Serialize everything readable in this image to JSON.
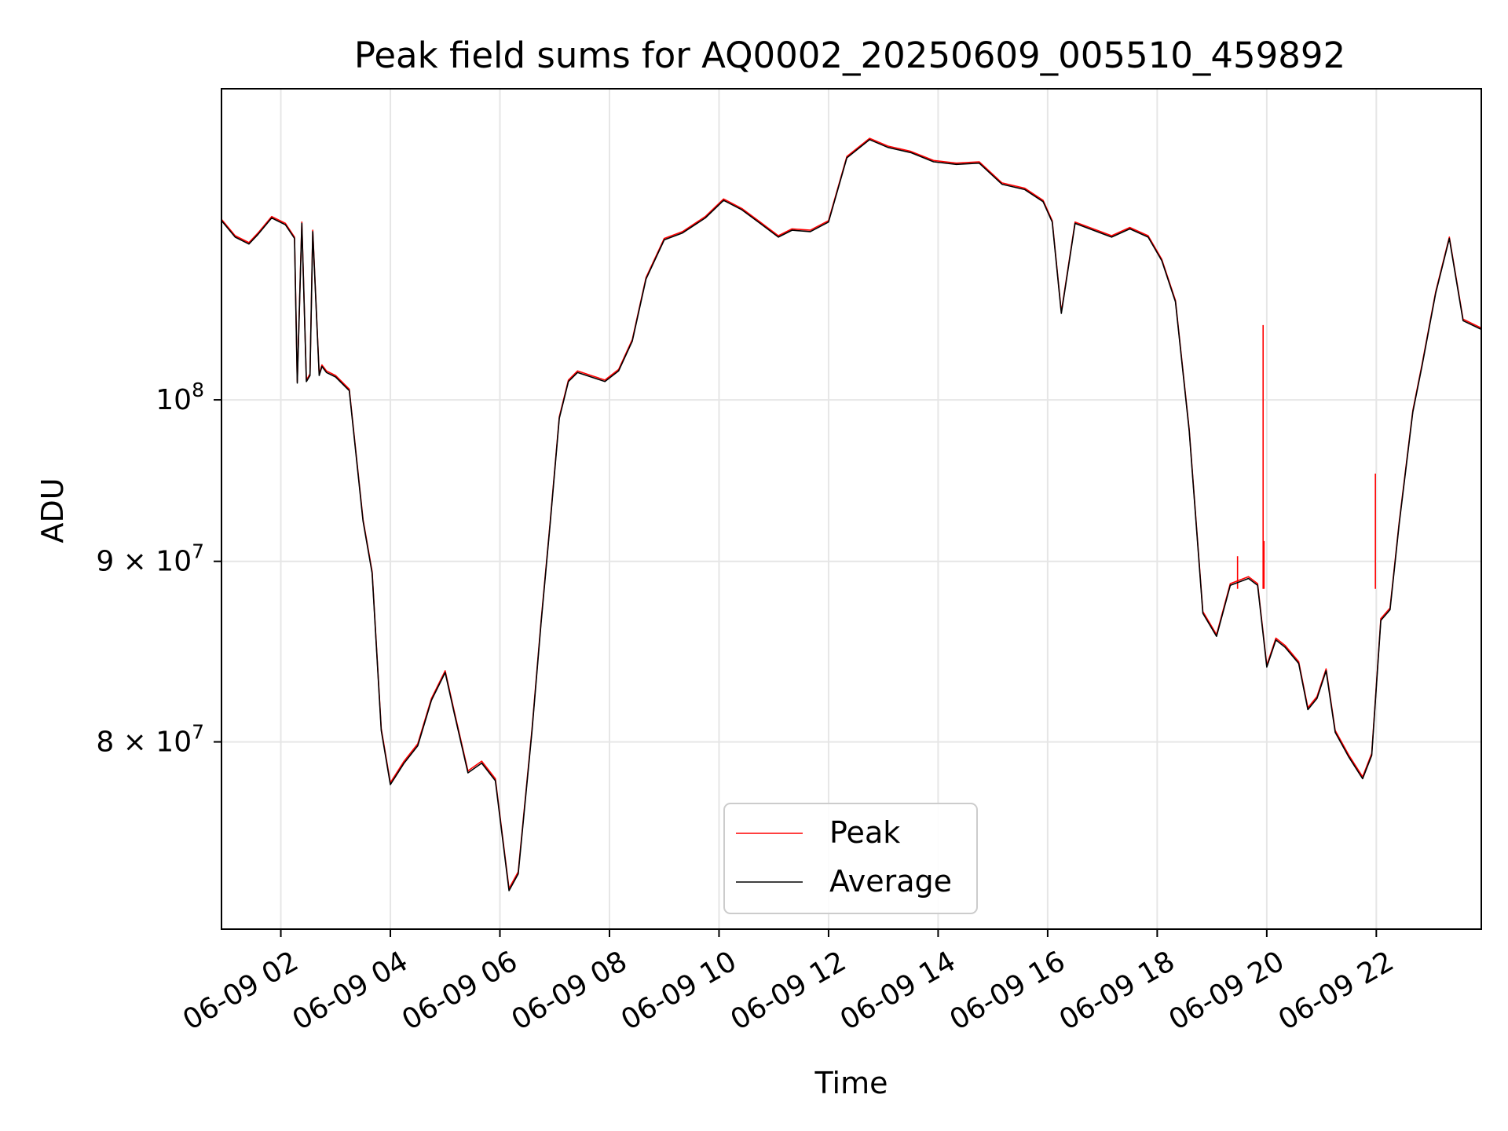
{
  "chart_data": {
    "type": "line",
    "title": "Peak field sums for AQ0002_20250609_005510_459892",
    "xlabel": "Time",
    "ylabel": "ADU",
    "y_scale": "log",
    "xlim": [
      "2025-06-09 00:55",
      "2025-06-09 23:55"
    ],
    "ylim": [
      70800000,
      122500000
    ],
    "x_ticks": [
      {
        "value": "2025-06-09 02:00",
        "label": "06-09 02"
      },
      {
        "value": "2025-06-09 04:00",
        "label": "06-09 04"
      },
      {
        "value": "2025-06-09 06:00",
        "label": "06-09 06"
      },
      {
        "value": "2025-06-09 08:00",
        "label": "06-09 08"
      },
      {
        "value": "2025-06-09 10:00",
        "label": "06-09 10"
      },
      {
        "value": "2025-06-09 12:00",
        "label": "06-09 12"
      },
      {
        "value": "2025-06-09 14:00",
        "label": "06-09 14"
      },
      {
        "value": "2025-06-09 16:00",
        "label": "06-09 16"
      },
      {
        "value": "2025-06-09 18:00",
        "label": "06-09 18"
      },
      {
        "value": "2025-06-09 20:00",
        "label": "06-09 20"
      },
      {
        "value": "2025-06-09 22:00",
        "label": "06-09 22"
      }
    ],
    "y_ticks": [
      {
        "value": 80000000,
        "base": "8 × 10",
        "exp": "7"
      },
      {
        "value": 90000000,
        "base": "9 × 10",
        "exp": "7"
      },
      {
        "value": 100000000,
        "base": "10",
        "exp": "8"
      }
    ],
    "grid": true,
    "legend_position": "lower center",
    "series": [
      {
        "name": "Peak",
        "color": "#ff0000",
        "x": [
          "2025-06-09 00:55",
          "2025-06-09 01:10",
          "2025-06-09 01:25",
          "2025-06-09 01:35",
          "2025-06-09 01:50",
          "2025-06-09 02:05",
          "2025-06-09 02:15",
          "2025-06-09 02:18",
          "2025-06-09 02:23",
          "2025-06-09 02:28",
          "2025-06-09 02:32",
          "2025-06-09 02:35",
          "2025-06-09 02:42",
          "2025-06-09 02:45",
          "2025-06-09 02:50",
          "2025-06-09 03:00",
          "2025-06-09 03:15",
          "2025-06-09 03:30",
          "2025-06-09 03:40",
          "2025-06-09 03:50",
          "2025-06-09 04:00",
          "2025-06-09 04:15",
          "2025-06-09 04:30",
          "2025-06-09 04:45",
          "2025-06-09 05:00",
          "2025-06-09 05:10",
          "2025-06-09 05:25",
          "2025-06-09 05:40",
          "2025-06-09 05:55",
          "2025-06-09 06:10",
          "2025-06-09 06:20",
          "2025-06-09 06:35",
          "2025-06-09 06:45",
          "2025-06-09 06:55",
          "2025-06-09 07:05",
          "2025-06-09 07:15",
          "2025-06-09 07:25",
          "2025-06-09 07:40",
          "2025-06-09 07:55",
          "2025-06-09 08:10",
          "2025-06-09 08:25",
          "2025-06-09 08:40",
          "2025-06-09 09:00",
          "2025-06-09 09:20",
          "2025-06-09 09:45",
          "2025-06-09 10:05",
          "2025-06-09 10:25",
          "2025-06-09 10:45",
          "2025-06-09 11:05",
          "2025-06-09 11:20",
          "2025-06-09 11:40",
          "2025-06-09 12:00",
          "2025-06-09 12:20",
          "2025-06-09 12:45",
          "2025-06-09 13:05",
          "2025-06-09 13:30",
          "2025-06-09 13:55",
          "2025-06-09 14:20",
          "2025-06-09 14:45",
          "2025-06-09 15:10",
          "2025-06-09 15:35",
          "2025-06-09 15:55",
          "2025-06-09 16:05",
          "2025-06-09 16:15",
          "2025-06-09 16:30",
          "2025-06-09 16:50",
          "2025-06-09 17:10",
          "2025-06-09 17:30",
          "2025-06-09 17:50",
          "2025-06-09 18:05",
          "2025-06-09 18:20",
          "2025-06-09 18:35",
          "2025-06-09 18:50",
          "2025-06-09 19:05",
          "2025-06-09 19:20",
          "2025-06-09 19:40",
          "2025-06-09 19:50",
          "2025-06-09 20:00",
          "2025-06-09 20:10",
          "2025-06-09 20:20",
          "2025-06-09 20:35",
          "2025-06-09 20:45",
          "2025-06-09 20:55",
          "2025-06-09 21:05",
          "2025-06-09 21:15",
          "2025-06-09 21:30",
          "2025-06-09 21:45",
          "2025-06-09 21:55",
          "2025-06-09 22:05",
          "2025-06-09 22:15",
          "2025-06-09 22:25",
          "2025-06-09 22:40",
          "2025-06-09 22:50",
          "2025-06-09 23:05",
          "2025-06-09 23:20",
          "2025-06-09 23:35",
          "2025-06-09 23:55"
        ],
        "y": [
          112500000,
          111300000,
          110800000,
          111500000,
          112700000,
          112200000,
          111200000,
          101200000,
          112300000,
          101300000,
          101700000,
          111700000,
          101700000,
          102300000,
          101900000,
          101600000,
          100700000,
          92500000,
          89400000,
          80700000,
          77900000,
          79000000,
          79900000,
          82300000,
          83800000,
          81600000,
          78500000,
          79000000,
          78100000,
          72700000,
          73500000,
          80600000,
          86500000,
          92300000,
          98900000,
          101300000,
          101900000,
          101600000,
          101300000,
          102000000,
          104000000,
          108300000,
          111100000,
          111600000,
          112700000,
          114000000,
          113300000,
          112300000,
          111300000,
          111800000,
          111700000,
          112400000,
          117200000,
          118600000,
          118000000,
          117600000,
          116900000,
          116700000,
          116800000,
          115200000,
          114800000,
          113900000,
          112400000,
          105900000,
          112300000,
          111800000,
          111300000,
          111900000,
          111300000,
          109600000,
          106700000,
          98100000,
          87100000,
          85800000,
          88700000,
          89100000,
          88700000,
          84100000,
          85600000,
          85200000,
          84300000,
          81800000,
          82400000,
          83900000,
          80600000,
          79300000,
          78200000,
          79400000,
          86700000,
          87300000,
          92300000,
          99300000,
          102300000,
          107300000,
          111200000,
          105400000,
          104800000
        ],
        "spikes": [
          {
            "x": "2025-06-09 19:56",
            "y": 105000000
          },
          {
            "x": "2025-06-09 19:57",
            "y": 91200000
          },
          {
            "x": "2025-06-09 21:59",
            "y": 95300000
          },
          {
            "x": "2025-06-09 19:28",
            "y": 90300000
          }
        ]
      },
      {
        "name": "Average",
        "color": "#000000",
        "x": [
          "2025-06-09 00:55",
          "2025-06-09 01:10",
          "2025-06-09 01:25",
          "2025-06-09 01:35",
          "2025-06-09 01:50",
          "2025-06-09 02:05",
          "2025-06-09 02:15",
          "2025-06-09 02:18",
          "2025-06-09 02:23",
          "2025-06-09 02:28",
          "2025-06-09 02:32",
          "2025-06-09 02:35",
          "2025-06-09 02:42",
          "2025-06-09 02:45",
          "2025-06-09 02:50",
          "2025-06-09 03:00",
          "2025-06-09 03:15",
          "2025-06-09 03:30",
          "2025-06-09 03:40",
          "2025-06-09 03:50",
          "2025-06-09 04:00",
          "2025-06-09 04:15",
          "2025-06-09 04:30",
          "2025-06-09 04:45",
          "2025-06-09 05:00",
          "2025-06-09 05:10",
          "2025-06-09 05:25",
          "2025-06-09 05:40",
          "2025-06-09 05:55",
          "2025-06-09 06:10",
          "2025-06-09 06:20",
          "2025-06-09 06:35",
          "2025-06-09 06:45",
          "2025-06-09 06:55",
          "2025-06-09 07:05",
          "2025-06-09 07:15",
          "2025-06-09 07:25",
          "2025-06-09 07:40",
          "2025-06-09 07:55",
          "2025-06-09 08:10",
          "2025-06-09 08:25",
          "2025-06-09 08:40",
          "2025-06-09 09:00",
          "2025-06-09 09:20",
          "2025-06-09 09:45",
          "2025-06-09 10:05",
          "2025-06-09 10:25",
          "2025-06-09 10:45",
          "2025-06-09 11:05",
          "2025-06-09 11:20",
          "2025-06-09 11:40",
          "2025-06-09 12:00",
          "2025-06-09 12:20",
          "2025-06-09 12:45",
          "2025-06-09 13:05",
          "2025-06-09 13:30",
          "2025-06-09 13:55",
          "2025-06-09 14:20",
          "2025-06-09 14:45",
          "2025-06-09 15:10",
          "2025-06-09 15:35",
          "2025-06-09 15:55",
          "2025-06-09 16:05",
          "2025-06-09 16:15",
          "2025-06-09 16:30",
          "2025-06-09 16:50",
          "2025-06-09 17:10",
          "2025-06-09 17:30",
          "2025-06-09 17:50",
          "2025-06-09 18:05",
          "2025-06-09 18:20",
          "2025-06-09 18:35",
          "2025-06-09 18:50",
          "2025-06-09 19:05",
          "2025-06-09 19:20",
          "2025-06-09 19:40",
          "2025-06-09 19:50",
          "2025-06-09 20:00",
          "2025-06-09 20:10",
          "2025-06-09 20:20",
          "2025-06-09 20:35",
          "2025-06-09 20:45",
          "2025-06-09 20:55",
          "2025-06-09 21:05",
          "2025-06-09 21:15",
          "2025-06-09 21:30",
          "2025-06-09 21:45",
          "2025-06-09 21:55",
          "2025-06-09 22:05",
          "2025-06-09 22:15",
          "2025-06-09 22:25",
          "2025-06-09 22:40",
          "2025-06-09 22:50",
          "2025-06-09 23:05",
          "2025-06-09 23:20",
          "2025-06-09 23:35",
          "2025-06-09 23:55"
        ],
        "y": [
          112400000,
          111200000,
          110700000,
          111400000,
          112600000,
          112100000,
          111100000,
          101100000,
          112200000,
          101200000,
          101600000,
          111600000,
          101600000,
          102200000,
          101800000,
          101500000,
          100600000,
          92400000,
          89300000,
          80600000,
          77800000,
          78900000,
          79800000,
          82200000,
          83700000,
          81500000,
          78400000,
          78900000,
          78000000,
          72600000,
          73400000,
          80500000,
          86400000,
          92200000,
          98800000,
          101200000,
          101800000,
          101500000,
          101200000,
          101900000,
          103900000,
          108200000,
          111000000,
          111500000,
          112600000,
          113900000,
          113200000,
          112200000,
          111200000,
          111700000,
          111600000,
          112300000,
          117100000,
          118500000,
          117900000,
          117500000,
          116800000,
          116600000,
          116700000,
          115100000,
          114700000,
          113800000,
          112300000,
          105800000,
          112200000,
          111700000,
          111200000,
          111800000,
          111200000,
          109500000,
          106600000,
          98000000,
          87000000,
          85700000,
          88600000,
          89000000,
          88600000,
          84000000,
          85500000,
          85100000,
          84200000,
          81700000,
          82300000,
          83800000,
          80500000,
          79200000,
          78100000,
          79300000,
          86600000,
          87200000,
          92200000,
          99200000,
          102200000,
          107200000,
          111100000,
          105300000,
          104700000
        ]
      }
    ]
  }
}
